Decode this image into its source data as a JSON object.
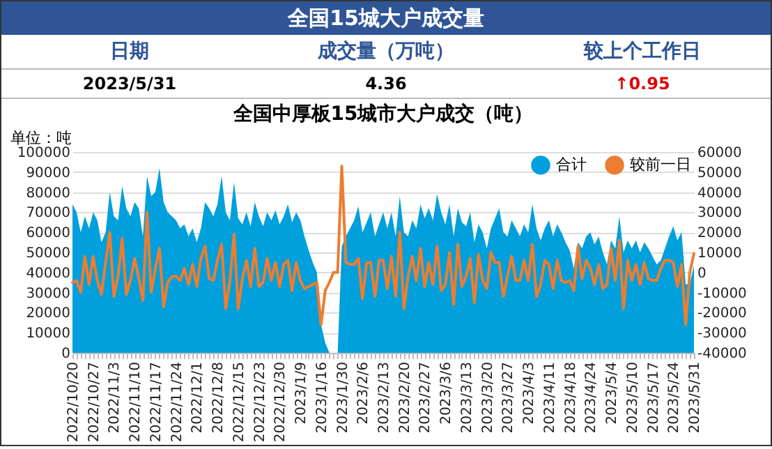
{
  "chart_data": [
    {
      "type": "other",
      "title": "全国15城大户成交量",
      "annotations": [
        "日期",
        "成交量（万吨）",
        "较上个工作日",
        "2023/5/31",
        "4.36",
        "↑0.95"
      ]
    },
    {
      "type": "area",
      "title": "全国中厚板15城市大户成交（吨）",
      "ylabel": "单位：吨",
      "categories": [
        "2022/10/20",
        null,
        null,
        null,
        null,
        "2022/10/27",
        null,
        null,
        null,
        null,
        "2022/11/3",
        null,
        null,
        null,
        null,
        "2022/11/10",
        null,
        null,
        null,
        null,
        "2022/11/17",
        null,
        null,
        null,
        null,
        "2022/11/24",
        null,
        null,
        null,
        null,
        "2022/12/1",
        null,
        null,
        null,
        null,
        "2022/12/8",
        null,
        null,
        null,
        null,
        "2022/12/15",
        null,
        null,
        null,
        null,
        "2022/12/23",
        null,
        null,
        null,
        null,
        "2022/12/30",
        null,
        null,
        null,
        null,
        "2023/1/9",
        null,
        null,
        null,
        null,
        "2023/1/16",
        null,
        null,
        null,
        null,
        "2023/1/30",
        null,
        null,
        null,
        null,
        "2023/2/6",
        null,
        null,
        null,
        null,
        "2023/2/13",
        null,
        null,
        null,
        null,
        "2023/2/20",
        null,
        null,
        null,
        null,
        "2023/2/27",
        null,
        null,
        null,
        null,
        "2023/3/6",
        null,
        null,
        null,
        null,
        "2023/3/13",
        null,
        null,
        null,
        null,
        "2023/3/20",
        null,
        null,
        null,
        null,
        "2023/3/27",
        null,
        null,
        null,
        null,
        "2023/4/3",
        null,
        null,
        null,
        null,
        "2023/4/11",
        null,
        null,
        null,
        null,
        "2023/4/18",
        null,
        null,
        null,
        null,
        "2023/4/24",
        null,
        null,
        null,
        null,
        "2023/5/4",
        null,
        null,
        null,
        null,
        "2023/5/10",
        null,
        null,
        null,
        null,
        "2023/5/17",
        null,
        null,
        null,
        null,
        "2023/5/24",
        null,
        null,
        null,
        null,
        "2023/5/31"
      ],
      "series": [
        {
          "name": "合计",
          "type": "area",
          "color": "#00a0dc",
          "values": [
            74000,
            70000,
            60000,
            68000,
            62000,
            70000,
            66000,
            55000,
            60000,
            80000,
            68000,
            66000,
            83000,
            72000,
            68000,
            75000,
            72000,
            58000,
            88000,
            78000,
            80000,
            92000,
            75000,
            70000,
            68000,
            66000,
            62000,
            64000,
            58000,
            62000,
            55000,
            62000,
            75000,
            72000,
            68000,
            74000,
            88000,
            70000,
            66000,
            85000,
            67000,
            64000,
            70000,
            63000,
            75000,
            68000,
            63000,
            70000,
            66000,
            71000,
            64000,
            68000,
            74000,
            65000,
            70000,
            66000,
            58000,
            51000,
            45000,
            40000,
            14000,
            5000,
            0,
            0,
            0,
            53000,
            58000,
            62000,
            66000,
            73000,
            60000,
            65000,
            70000,
            58000,
            64000,
            70000,
            62000,
            70000,
            58000,
            78000,
            60000,
            58000,
            66000,
            62000,
            74000,
            67000,
            72000,
            66000,
            79000,
            70000,
            64000,
            74000,
            58000,
            72000,
            65000,
            63000,
            70000,
            55000,
            64000,
            60000,
            52000,
            62000,
            67000,
            72000,
            60000,
            58000,
            66000,
            62000,
            58000,
            64000,
            60000,
            74000,
            62000,
            56000,
            62000,
            66000,
            58000,
            64000,
            60000,
            55000,
            51000,
            42000,
            55000,
            52000,
            58000,
            60000,
            54000,
            58000,
            50000,
            44000,
            56000,
            52000,
            68000,
            50000,
            56000,
            52000,
            56000,
            50000,
            55000,
            52000,
            48000,
            44000,
            46000,
            52000,
            58000,
            63000,
            56000,
            60100,
            34100,
            34100,
            43600
          ]
        },
        {
          "name": "较前一日",
          "type": "line",
          "axis": "y2",
          "color": "#ed7d31",
          "values": [
            -5000,
            -4000,
            -10000,
            8000,
            -6000,
            8000,
            -4000,
            -11000,
            5000,
            20000,
            -12000,
            -2000,
            17000,
            -11000,
            -4000,
            7000,
            -3000,
            -14000,
            30000,
            -10000,
            2000,
            12000,
            -17000,
            -5000,
            -2000,
            -2000,
            -4000,
            2000,
            -6000,
            4000,
            -7000,
            7000,
            13000,
            -3000,
            -4000,
            6000,
            14000,
            -18000,
            -4000,
            19000,
            -18000,
            -3000,
            6000,
            -7000,
            12000,
            -7000,
            -5000,
            7000,
            -4000,
            5000,
            -7000,
            4000,
            6000,
            -9000,
            5000,
            -4000,
            -8000,
            -7000,
            -6000,
            -5000,
            -26000,
            -9000,
            -5000,
            0,
            0,
            53000,
            5000,
            4000,
            4000,
            7000,
            -13000,
            5000,
            5000,
            -12000,
            6000,
            6000,
            -8000,
            8000,
            -12000,
            20000,
            -18000,
            -2000,
            8000,
            -4000,
            12000,
            -7000,
            5000,
            -6000,
            13000,
            -9000,
            -6000,
            10000,
            -16000,
            14000,
            -7000,
            -2000,
            7000,
            -15000,
            9000,
            -4000,
            -8000,
            10000,
            5000,
            5000,
            -12000,
            -2000,
            8000,
            -4000,
            -4000,
            6000,
            -4000,
            14000,
            -12000,
            -6000,
            6000,
            4000,
            -8000,
            6000,
            -4000,
            -5000,
            -4000,
            -9000,
            13000,
            -3000,
            6000,
            2000,
            -6000,
            4000,
            -8000,
            -6000,
            12000,
            -4000,
            16000,
            -18000,
            6000,
            -4000,
            4000,
            -6000,
            5000,
            -3000,
            -4000,
            -4000,
            2000,
            6000,
            6000,
            5000,
            -7000,
            4100,
            -26000,
            0,
            9500
          ]
        }
      ],
      "ylim": [
        0,
        100000
      ],
      "yticks": [
        0,
        10000,
        20000,
        30000,
        40000,
        50000,
        60000,
        70000,
        80000,
        90000,
        100000
      ],
      "y2lim": [
        -40000,
        60000
      ],
      "y2ticks": [
        -40000,
        -30000,
        -20000,
        -10000,
        0,
        10000,
        20000,
        30000,
        40000,
        50000,
        60000
      ],
      "grid": "y",
      "legend": "top right"
    }
  ]
}
